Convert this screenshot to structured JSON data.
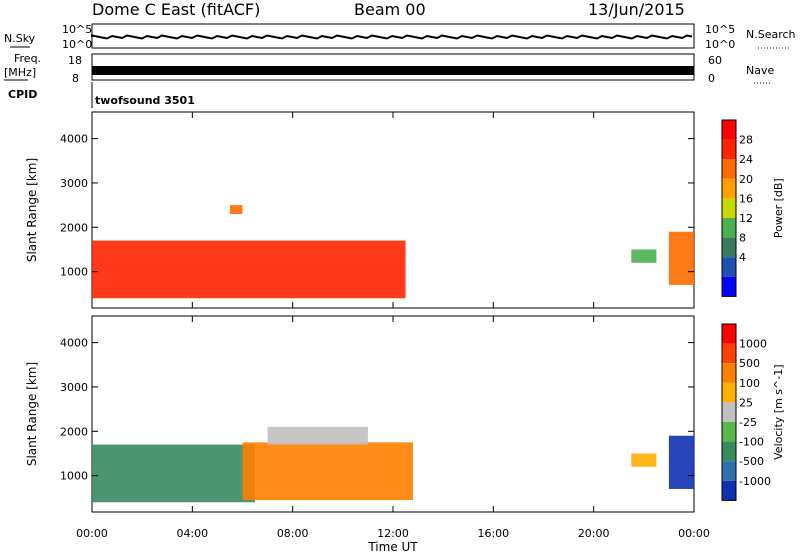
{
  "header": {
    "title": "Dome C East (fitACF)",
    "beam": "Beam 00",
    "date": "13/Jun/2015"
  },
  "summary": {
    "nsky_label": "N.Sky",
    "nsearch_label": "N.Search",
    "nsky_ticks": [
      "10^5",
      "10^0"
    ],
    "nsearch_ticks": [
      "10^5",
      "10^0"
    ],
    "freq_label_1": "Freq.",
    "freq_label_2": "[MHz]",
    "freq_ticks": [
      "18",
      "8"
    ],
    "nave_label": "Nave",
    "nave_ticks": [
      "60",
      "0"
    ],
    "cpid_label": "CPID",
    "cpid_value": "twofsound 3501"
  },
  "chart_data": [
    {
      "type": "heatmap",
      "name": "power",
      "ylabel": "Slant Range [km]",
      "xlabel": "",
      "x_ticks": [
        "00:00",
        "04:00",
        "08:00",
        "12:00",
        "16:00",
        "20:00",
        "00:00"
      ],
      "x_range_hours": [
        0,
        24
      ],
      "y_ticks": [
        1000,
        2000,
        3000,
        4000
      ],
      "y_range_km": [
        180,
        4600
      ],
      "colorbar": {
        "label": "Power [dB]",
        "ticks": [
          "28",
          "24",
          "20",
          "16",
          "12",
          "8",
          "4"
        ],
        "colors": [
          "#0000ff",
          "#1f4fb0",
          "#3a7a5a",
          "#4caf50",
          "#c8d800",
          "#ffa000",
          "#ff6a00",
          "#ff2400",
          "#ff0000"
        ]
      },
      "regions": [
        {
          "start_h": 0.0,
          "end_h": 12.5,
          "range_km": [
            400,
            1700
          ],
          "level": 7
        },
        {
          "start_h": 5.5,
          "end_h": 6.0,
          "range_km": [
            2300,
            2500
          ],
          "level": 6
        },
        {
          "start_h": 23.0,
          "end_h": 24.0,
          "range_km": [
            700,
            1900
          ],
          "level": 6
        },
        {
          "start_h": 21.5,
          "end_h": 22.5,
          "range_km": [
            1200,
            1500
          ],
          "level": 3
        }
      ]
    },
    {
      "type": "heatmap",
      "name": "velocity",
      "ylabel": "Slant Range [km]",
      "xlabel": "Time UT",
      "x_ticks": [
        "00:00",
        "04:00",
        "08:00",
        "12:00",
        "16:00",
        "20:00",
        "00:00"
      ],
      "x_range_hours": [
        0,
        24
      ],
      "y_ticks": [
        1000,
        2000,
        3000,
        4000
      ],
      "y_range_km": [
        180,
        4600
      ],
      "colorbar": {
        "label": "Velocity [m s^-1]",
        "ticks": [
          "1000",
          "500",
          "100",
          "25",
          "-25",
          "-100",
          "-500",
          "-1000"
        ],
        "colors": [
          "#1030b0",
          "#2f6fb0",
          "#3a8a60",
          "#5ab84a",
          "#c0c0c0",
          "#ffb000",
          "#ff8000",
          "#ff4000",
          "#ff0000"
        ]
      },
      "regions": [
        {
          "start_h": 0.0,
          "end_h": 6.5,
          "range_km": [
            400,
            1700
          ],
          "level": 2
        },
        {
          "start_h": 6.0,
          "end_h": 12.8,
          "range_km": [
            450,
            1750
          ],
          "level": 6
        },
        {
          "start_h": 7.0,
          "end_h": 11.0,
          "range_km": [
            1700,
            2100
          ],
          "level": 4
        },
        {
          "start_h": 23.0,
          "end_h": 24.0,
          "range_km": [
            700,
            1900
          ],
          "level": 0
        },
        {
          "start_h": 21.5,
          "end_h": 22.5,
          "range_km": [
            1200,
            1500
          ],
          "level": 5
        }
      ]
    }
  ]
}
